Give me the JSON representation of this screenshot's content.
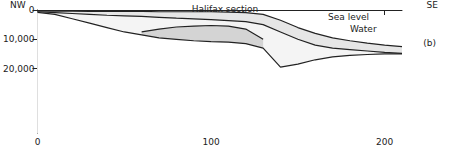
{
  "chart_data": {
    "type": "area",
    "title": "Halifax section",
    "left_label": "NW",
    "right_label": "SE",
    "panel_label": "(b)",
    "annotations": [
      "Sea level",
      "Water"
    ],
    "x": [
      0,
      10,
      20,
      30,
      40,
      50,
      60,
      70,
      80,
      90,
      100,
      110,
      120,
      130,
      140,
      150,
      160,
      170,
      180,
      190,
      200,
      210
    ],
    "series": [
      {
        "color": "#e6e6e6",
        "values": [
          300,
          400,
          400,
          500,
          500,
          500,
          500,
          600,
          600,
          600,
          600,
          700,
          900,
          1500,
          3500,
          6000,
          8000,
          9500,
          10500,
          11300,
          12000,
          12500
        ]
      },
      {
        "color": "#f4f4f4",
        "values": [
          600,
          900,
          1200,
          1500,
          1800,
          2000,
          2200,
          2500,
          2800,
          3000,
          3300,
          3600,
          4000,
          5000,
          7500,
          10000,
          12000,
          13000,
          13500,
          14000,
          14500,
          14800
        ]
      },
      {
        "color": "#d4d4d4",
        "values": [
          null,
          null,
          null,
          null,
          null,
          null,
          7500,
          6500,
          5800,
          5500,
          5300,
          5500,
          6500,
          10000,
          null,
          null,
          null,
          null,
          null,
          null,
          null,
          null
        ]
      },
      {
        "color": "#ffffff",
        "values": [
          800,
          1500,
          3000,
          4500,
          6000,
          7500,
          8500,
          9500,
          10000,
          10500,
          10800,
          11000,
          11500,
          13000,
          19500,
          18500,
          17000,
          16000,
          15500,
          15200,
          15000,
          15000
        ]
      }
    ],
    "xlim": [
      0,
      210
    ],
    "xticks": [
      0,
      100,
      200
    ],
    "ylim": [
      0,
      42000
    ],
    "yticks": [
      0,
      {
        "value": 10000,
        "label": "10,000"
      },
      {
        "value": 20000,
        "label": "20,000"
      }
    ],
    "grid": false
  }
}
